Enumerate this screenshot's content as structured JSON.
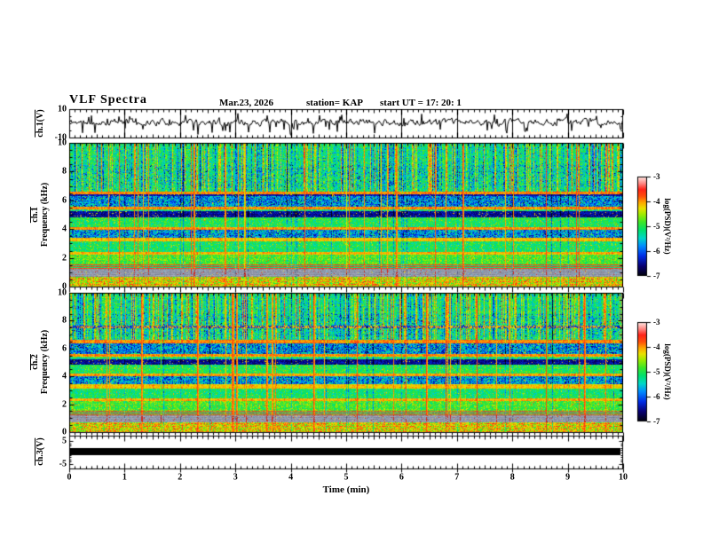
{
  "header": {
    "title": "VLF Spectra",
    "date": "Mar.23, 2026",
    "station": "station= KAP",
    "start_ut": "start UT =   17: 20: 1"
  },
  "axes": {
    "time": {
      "label": "Time (min)",
      "ticks": [
        "0",
        "1",
        "2",
        "3",
        "4",
        "5",
        "6",
        "7",
        "8",
        "9",
        "10"
      ],
      "min": 0,
      "max": 10,
      "minor_step_min": 0.1
    },
    "wave1": {
      "label": "ch.1(V)",
      "tick_labels": [
        "10",
        "-10"
      ],
      "ylim": [
        -10,
        10
      ]
    },
    "spec1": {
      "label_line1": "ch.1",
      "label_line2": "Frequency (kHz)",
      "tick_values": [
        0,
        2,
        4,
        6,
        8,
        10
      ],
      "ylim": [
        0,
        10
      ]
    },
    "spec2": {
      "label_line1": "ch.2",
      "label_line2": "Frequency (kHz)",
      "tick_values": [
        0,
        2,
        4,
        6,
        8,
        10
      ],
      "ylim": [
        0,
        10
      ]
    },
    "wave3": {
      "label": "ch.3(V)",
      "tick_labels": [
        "5",
        "-5"
      ],
      "ylim": [
        -5,
        5
      ]
    }
  },
  "colorbar": {
    "label": "log(PSD)(V²/Hz)",
    "tick_labels": [
      "-3",
      "-4",
      "-5",
      "-6",
      "-7"
    ],
    "value_range": [
      -7,
      -3
    ],
    "stops": [
      [
        0,
        0,
        0,
        8
      ],
      [
        0.1,
        8,
        0,
        115
      ],
      [
        0.2,
        0,
        45,
        230
      ],
      [
        0.3,
        0,
        140,
        255
      ],
      [
        0.38,
        0,
        215,
        200
      ],
      [
        0.46,
        0,
        225,
        110
      ],
      [
        0.54,
        60,
        230,
        40
      ],
      [
        0.62,
        160,
        235,
        0
      ],
      [
        0.68,
        235,
        225,
        0
      ],
      [
        0.74,
        255,
        165,
        0
      ],
      [
        0.8,
        255,
        80,
        10
      ],
      [
        0.87,
        255,
        35,
        25
      ],
      [
        0.93,
        255,
        135,
        130
      ],
      [
        1,
        255,
        236,
        232
      ]
    ]
  },
  "chart_data": [
    {
      "type": "line",
      "panel": "ch1-waveform",
      "ylabel": "ch.1(V)",
      "xlim": [
        0,
        10
      ],
      "ylim": [
        -10,
        10
      ],
      "seed": 11,
      "description": "dense black noise waveform centered near 0 V with frequent spikes to about -8 V and +6 V; thin vertical grid lines at every whole minute"
    },
    {
      "type": "heatmap",
      "panel": "ch1-spectrogram",
      "ylabel": "ch.1 Frequency (kHz)",
      "xlim": [
        0,
        10
      ],
      "ylim": [
        0,
        10
      ],
      "zlabel": "log(PSD)(V²/Hz)",
      "zlim": [
        -7,
        -3
      ],
      "seed": 7,
      "event_times_min": [
        0.9,
        2.25,
        2.8,
        3.15,
        4.25,
        5.0,
        5.9,
        6.6,
        7.1,
        8.6,
        9.15
      ],
      "bands": [
        {
          "f_hi": 10.0,
          "f_lo": 6.62,
          "level": -5.15,
          "type": "streaky"
        },
        {
          "f_hi": 6.62,
          "f_lo": 6.4,
          "level": -3.95,
          "type": "hband"
        },
        {
          "f_hi": 6.4,
          "f_lo": 6.28,
          "level": -6.4,
          "type": "dark"
        },
        {
          "f_hi": 6.28,
          "f_lo": 5.58,
          "level": -5.8,
          "type": "speckle"
        },
        {
          "f_hi": 5.58,
          "f_lo": 5.4,
          "level": -4.0,
          "type": "hband"
        },
        {
          "f_hi": 5.4,
          "f_lo": 5.22,
          "level": -5.2,
          "type": "mix"
        },
        {
          "f_hi": 5.22,
          "f_lo": 4.8,
          "level": -6.5,
          "type": "dark"
        },
        {
          "f_hi": 4.8,
          "f_lo": 4.16,
          "level": -5.05,
          "type": "green"
        },
        {
          "f_hi": 4.16,
          "f_lo": 3.98,
          "level": -4.0,
          "type": "hband"
        },
        {
          "f_hi": 3.98,
          "f_lo": 3.42,
          "level": -5.75,
          "type": "speckle"
        },
        {
          "f_hi": 3.42,
          "f_lo": 3.12,
          "level": -4.15,
          "type": "hband"
        },
        {
          "f_hi": 3.12,
          "f_lo": 2.42,
          "level": -5.1,
          "type": "green"
        },
        {
          "f_hi": 2.42,
          "f_lo": 2.24,
          "level": -4.1,
          "type": "hband"
        },
        {
          "f_hi": 2.24,
          "f_lo": 1.52,
          "level": -4.85,
          "type": "green"
        },
        {
          "f_hi": 1.52,
          "f_lo": 1.24,
          "level": -3.7,
          "type": "stripes"
        },
        {
          "f_hi": 1.24,
          "f_lo": 0.7,
          "level": -5.0,
          "type": "gray"
        },
        {
          "f_hi": 0.7,
          "f_lo": 0.0,
          "level": -4.35,
          "type": "mix"
        }
      ]
    },
    {
      "type": "heatmap",
      "panel": "ch2-spectrogram",
      "ylabel": "ch.2 Frequency (kHz)",
      "xlim": [
        0,
        10
      ],
      "ylim": [
        0,
        10
      ],
      "zlabel": "log(PSD)(V²/Hz)",
      "zlim": [
        -7,
        -3
      ],
      "seed": 13,
      "event_times_min": [
        1.3,
        2.3,
        2.95,
        3.02,
        3.55,
        4.4,
        5.2,
        6.45,
        6.8,
        7.35,
        8.6,
        9.3
      ],
      "bands": [
        {
          "f_hi": 10.0,
          "f_lo": 7.64,
          "level": -5.15,
          "type": "streaky"
        },
        {
          "f_hi": 7.64,
          "f_lo": 7.44,
          "level": -4.3,
          "type": "hband_dark"
        },
        {
          "f_hi": 7.44,
          "f_lo": 6.62,
          "level": -5.2,
          "type": "streaky"
        },
        {
          "f_hi": 6.62,
          "f_lo": 6.4,
          "level": -3.95,
          "type": "hband"
        },
        {
          "f_hi": 6.4,
          "f_lo": 5.62,
          "level": -5.8,
          "type": "speckle"
        },
        {
          "f_hi": 5.62,
          "f_lo": 5.44,
          "level": -4.0,
          "type": "hband"
        },
        {
          "f_hi": 5.44,
          "f_lo": 5.24,
          "level": -5.2,
          "type": "mix"
        },
        {
          "f_hi": 5.24,
          "f_lo": 4.82,
          "level": -6.5,
          "type": "dark"
        },
        {
          "f_hi": 4.82,
          "f_lo": 4.22,
          "level": -5.05,
          "type": "green"
        },
        {
          "f_hi": 4.22,
          "f_lo": 4.02,
          "level": -4.05,
          "type": "hband"
        },
        {
          "f_hi": 4.02,
          "f_lo": 3.44,
          "level": -5.75,
          "type": "speckle"
        },
        {
          "f_hi": 3.44,
          "f_lo": 3.14,
          "level": -4.15,
          "type": "hband"
        },
        {
          "f_hi": 3.14,
          "f_lo": 2.44,
          "level": -5.1,
          "type": "green"
        },
        {
          "f_hi": 2.44,
          "f_lo": 2.26,
          "level": -4.1,
          "type": "hband"
        },
        {
          "f_hi": 2.26,
          "f_lo": 1.52,
          "level": -4.85,
          "type": "green"
        },
        {
          "f_hi": 1.52,
          "f_lo": 1.24,
          "level": -3.75,
          "type": "stripes"
        },
        {
          "f_hi": 1.24,
          "f_lo": 0.7,
          "level": -5.0,
          "type": "gray"
        },
        {
          "f_hi": 0.7,
          "f_lo": 0.0,
          "level": -4.35,
          "type": "mix"
        }
      ]
    },
    {
      "type": "line",
      "panel": "ch3-waveform",
      "ylabel": "ch.3(V)",
      "xlim": [
        0,
        10
      ],
      "ylim": [
        -5,
        5
      ],
      "description": "flat saturated trace drawn as a thick solid black bar centered near 0 V spanning the full 10 minutes"
    }
  ]
}
